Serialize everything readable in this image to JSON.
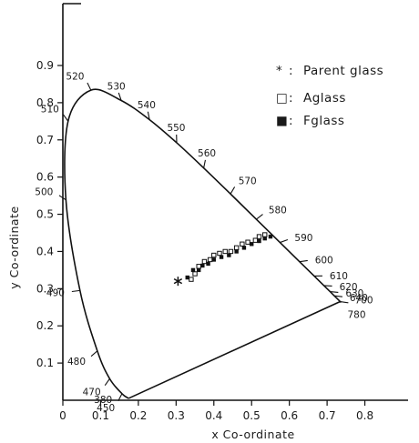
{
  "chart_data": {
    "type": "scatter",
    "xlabel": "x Co-ordinate",
    "ylabel": "y Co-ordinate",
    "xlim": [
      0,
      0.9
    ],
    "ylim": [
      0,
      0.9
    ],
    "x_ticks": [
      "0",
      "0.1",
      "0.2",
      "0.3",
      "0.4",
      "0.5",
      "0.6",
      "0.7",
      "0.8"
    ],
    "y_ticks": [
      "0.1",
      "0.2",
      "0.3",
      "0.4",
      "0.5",
      "0.6",
      "0.7",
      "0.8",
      "0.9"
    ],
    "grid": false,
    "legend_position": "top-right",
    "spectral_locus": [
      {
        "wl": "380",
        "x": 0.1741,
        "y": 0.005
      },
      {
        "wl": "450",
        "x": 0.1566,
        "y": 0.0177
      },
      {
        "wl": "470",
        "x": 0.1241,
        "y": 0.0578
      },
      {
        "wl": "480",
        "x": 0.0913,
        "y": 0.1327
      },
      {
        "wl": "490",
        "x": 0.0454,
        "y": 0.295
      },
      {
        "wl": "500",
        "x": 0.0082,
        "y": 0.5384
      },
      {
        "wl": "510",
        "x": 0.0139,
        "y": 0.7502
      },
      {
        "wl": "520",
        "x": 0.0743,
        "y": 0.8338
      },
      {
        "wl": "530",
        "x": 0.1547,
        "y": 0.8059
      },
      {
        "wl": "540",
        "x": 0.2296,
        "y": 0.7543
      },
      {
        "wl": "550",
        "x": 0.3016,
        "y": 0.6923
      },
      {
        "wl": "560",
        "x": 0.3731,
        "y": 0.6245
      },
      {
        "wl": "570",
        "x": 0.4441,
        "y": 0.5547
      },
      {
        "wl": "580",
        "x": 0.5125,
        "y": 0.4866
      },
      {
        "wl": "590",
        "x": 0.5752,
        "y": 0.4242
      },
      {
        "wl": "600",
        "x": 0.627,
        "y": 0.3725
      },
      {
        "wl": "610",
        "x": 0.6658,
        "y": 0.334
      },
      {
        "wl": "620",
        "x": 0.6915,
        "y": 0.3083
      },
      {
        "wl": "630",
        "x": 0.7079,
        "y": 0.292
      },
      {
        "wl": "640",
        "x": 0.719,
        "y": 0.2809
      },
      {
        "wl": "700",
        "x": 0.7347,
        "y": 0.2653
      },
      {
        "wl": "780",
        "x": 0.7347,
        "y": 0.2653
      }
    ],
    "series": [
      {
        "name": "Parent glass",
        "marker": "asterisk",
        "points": [
          [
            0.305,
            0.32
          ]
        ]
      },
      {
        "name": "A glass",
        "marker": "open-square",
        "points": [
          [
            0.34,
            0.325
          ],
          [
            0.35,
            0.34
          ],
          [
            0.36,
            0.36
          ],
          [
            0.375,
            0.373
          ],
          [
            0.39,
            0.378
          ],
          [
            0.4,
            0.39
          ],
          [
            0.415,
            0.395
          ],
          [
            0.43,
            0.4
          ],
          [
            0.445,
            0.4
          ],
          [
            0.46,
            0.41
          ],
          [
            0.475,
            0.42
          ],
          [
            0.49,
            0.425
          ],
          [
            0.51,
            0.43
          ],
          [
            0.52,
            0.44
          ],
          [
            0.535,
            0.445
          ]
        ]
      },
      {
        "name": "F glass",
        "marker": "filled-square",
        "points": [
          [
            0.33,
            0.33
          ],
          [
            0.345,
            0.35
          ],
          [
            0.36,
            0.35
          ],
          [
            0.37,
            0.362
          ],
          [
            0.385,
            0.367
          ],
          [
            0.4,
            0.378
          ],
          [
            0.42,
            0.385
          ],
          [
            0.44,
            0.39
          ],
          [
            0.46,
            0.4
          ],
          [
            0.48,
            0.41
          ],
          [
            0.5,
            0.42
          ],
          [
            0.52,
            0.428
          ],
          [
            0.535,
            0.435
          ],
          [
            0.55,
            0.44
          ]
        ]
      }
    ]
  },
  "legend": [
    {
      "symbol": "*",
      "label": "Parent glass"
    },
    {
      "symbol": "□",
      "label": "Aglass"
    },
    {
      "symbol": "■",
      "label": "Fglass"
    }
  ]
}
